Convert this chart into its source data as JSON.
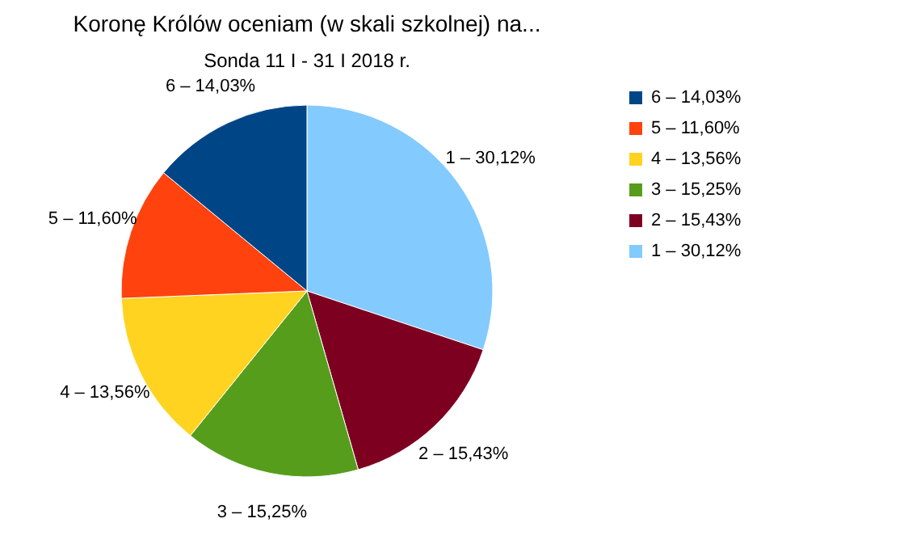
{
  "chart_data": {
    "type": "pie",
    "title": "Koronę Królów oceniam (w skali szkolnej) na...",
    "subtitle": "Sonda 11 I - 31 I 2018 r.",
    "categories": [
      "1 – 30,12%",
      "2 – 15,43%",
      "3 – 15,25%",
      "4 – 13,56%",
      "5 – 11,60%",
      "6 – 14,03%"
    ],
    "values": [
      30.12,
      15.43,
      15.25,
      13.56,
      11.6,
      14.03
    ],
    "colors": [
      "#83caff",
      "#7e0021",
      "#579d1c",
      "#ffd320",
      "#ff420e",
      "#004586"
    ],
    "legend": "right"
  }
}
